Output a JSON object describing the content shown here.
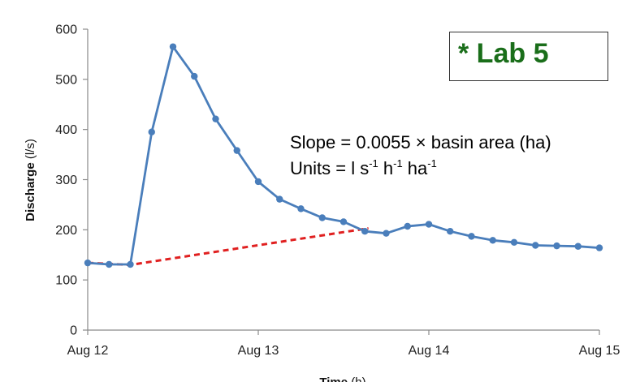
{
  "chart_data": {
    "type": "line",
    "xlabel": "Time",
    "xlabel_unit": "(h)",
    "ylabel": "Discharge",
    "ylabel_unit": "(l/s)",
    "x_tick_labels": [
      "Aug 12",
      "Aug 13",
      "Aug 14",
      "Aug 15"
    ],
    "xlim": [
      0,
      72
    ],
    "ylim": [
      0,
      600
    ],
    "y_ticks": [
      0,
      100,
      200,
      300,
      400,
      500,
      600
    ],
    "grid": false,
    "series": [
      {
        "color": "#4a7ebb",
        "marker": "circle",
        "x": [
          0,
          3,
          6,
          9,
          12,
          15,
          18,
          21,
          24,
          27,
          30,
          33,
          36,
          39,
          42,
          45,
          48,
          51,
          54,
          57,
          60,
          63,
          66,
          69,
          72
        ],
        "y": [
          134,
          131,
          131,
          395,
          565,
          506,
          421,
          358,
          296,
          261,
          242,
          224,
          216,
          197,
          193,
          207,
          211,
          197,
          187,
          179,
          175,
          169,
          168,
          167,
          164
        ]
      }
    ],
    "baseline": {
      "color": "#e02020",
      "style": "dashed",
      "x": [
        0,
        6,
        39.5
      ],
      "y": [
        134,
        130,
        203
      ]
    }
  },
  "annotations": {
    "lab_label": "* Lab 5",
    "slope_text": "Slope = 0.0055 × basin area (ha)",
    "units_prefix": "Units = l s",
    "units_exp1": "-1",
    "units_mid": " h",
    "units_exp2": "-1",
    "units_mid2": " ha",
    "units_exp3": "-1"
  }
}
